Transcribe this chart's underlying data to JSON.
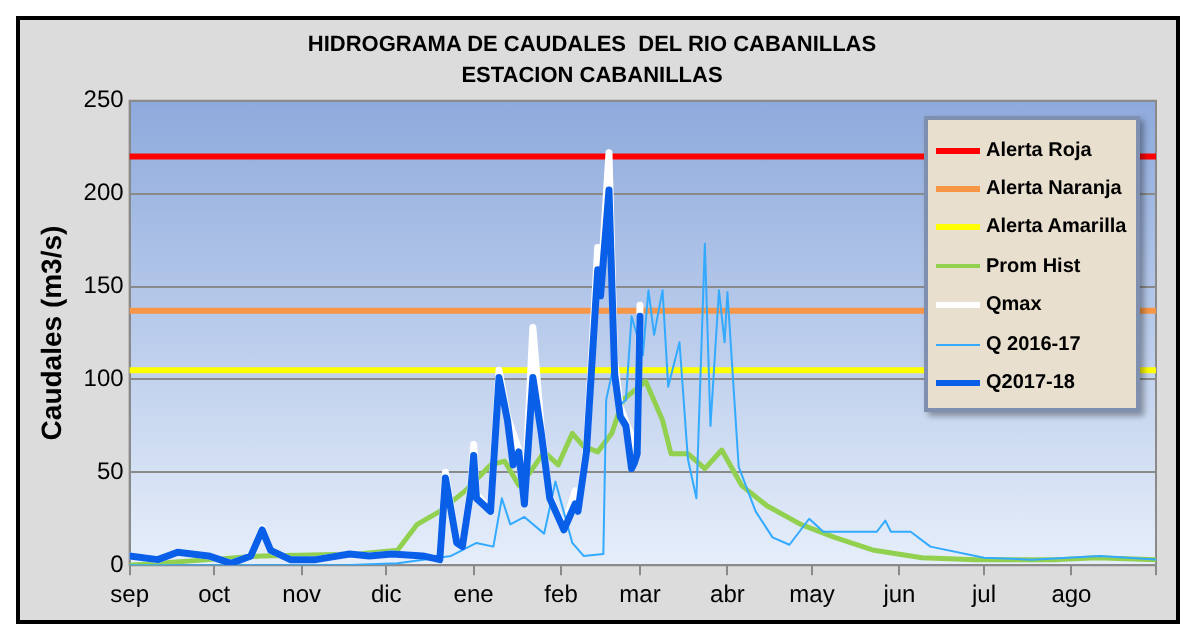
{
  "chart_data": {
    "type": "line",
    "title": "HIDROGRAMA DE CAUDALES  DEL RIO CABANILLAS",
    "subtitle": "ESTACION CABANILLAS",
    "ylabel": "Caudales (m3/s)",
    "xlim": [
      "2017-09-01",
      "2018-08-31"
    ],
    "xticks": [
      {
        "value": "2017-09-01",
        "label": "sep"
      },
      {
        "value": "2017-10-01",
        "label": "oct"
      },
      {
        "value": "2017-11-01",
        "label": "nov"
      },
      {
        "value": "2017-12-01",
        "label": "dic"
      },
      {
        "value": "2018-01-01",
        "label": "ene"
      },
      {
        "value": "2018-02-01",
        "label": "feb"
      },
      {
        "value": "2018-03-01",
        "label": "mar"
      },
      {
        "value": "2018-04-01",
        "label": "abr"
      },
      {
        "value": "2018-05-01",
        "label": "may"
      },
      {
        "value": "2018-06-01",
        "label": "jun"
      },
      {
        "value": "2018-07-01",
        "label": "jul"
      },
      {
        "value": "2018-08-01",
        "label": "ago"
      },
      {
        "value": "2018-08-31",
        "label": null
      }
    ],
    "ylim": [
      0,
      250
    ],
    "yticks": [
      0,
      50,
      100,
      150,
      200,
      250
    ],
    "grid": "y",
    "legend": "top right",
    "marker": "none",
    "line_style": "solid",
    "series": [
      {
        "name": "Alerta Roja",
        "color": "#ff0000",
        "x": [
          "2017-09-01",
          "2018-08-31"
        ],
        "values": [
          220,
          220
        ]
      },
      {
        "name": "Alerta Naranja",
        "color": "#f79646",
        "x": [
          "2017-09-01",
          "2018-08-31"
        ],
        "values": [
          137,
          137
        ]
      },
      {
        "name": "Alerta Amarilla",
        "color": "#ffff00",
        "x": [
          "2017-09-01",
          "2018-08-31"
        ],
        "values": [
          105,
          105
        ]
      },
      {
        "name": "Prom Hist",
        "color": "#92d050",
        "x": [
          "2017-09-01",
          "2017-09-29",
          "2017-10-18",
          "2017-11-21",
          "2017-12-05",
          "2017-12-12",
          "2017-12-20",
          "2017-12-29",
          "2018-01-07",
          "2018-01-12",
          "2018-01-17",
          "2018-01-21",
          "2018-01-26",
          "2018-01-31",
          "2018-02-05",
          "2018-02-09",
          "2018-02-14",
          "2018-02-19",
          "2018-02-23",
          "2018-03-03",
          "2018-03-09",
          "2018-03-12",
          "2018-03-18",
          "2018-03-24",
          "2018-03-30",
          "2018-04-06",
          "2018-04-15",
          "2018-04-27",
          "2018-05-09",
          "2018-05-23",
          "2018-06-09",
          "2018-06-28",
          "2018-07-27",
          "2018-08-10",
          "2018-08-31"
        ],
        "values": [
          0,
          3,
          5,
          6,
          8,
          22,
          29,
          40,
          54,
          56,
          43,
          50,
          61,
          54,
          71,
          64,
          61,
          71,
          89,
          99,
          78,
          60,
          60,
          52,
          62,
          43,
          32,
          22,
          15,
          8,
          4,
          3,
          3,
          4,
          3
        ]
      },
      {
        "name": "Qmax",
        "color": "#ffffff",
        "x": [
          "2017-09-01",
          "2017-09-11",
          "2017-09-18",
          "2017-09-29",
          "2017-10-07",
          "2017-10-14",
          "2017-10-18",
          "2017-10-21",
          "2017-10-28",
          "2017-11-06",
          "2017-11-18",
          "2017-11-25",
          "2017-12-03",
          "2017-12-14",
          "2017-12-20",
          "2017-12-22",
          "2017-12-26",
          "2017-12-28",
          "2017-12-31",
          "2018-01-01",
          "2018-01-02",
          "2018-01-07",
          "2018-01-10",
          "2018-01-13",
          "2018-01-15",
          "2018-01-17",
          "2018-01-19",
          "2018-01-22",
          "2018-01-25",
          "2018-01-28",
          "2018-02-02",
          "2018-02-06",
          "2018-02-07",
          "2018-02-10",
          "2018-02-14",
          "2018-02-15",
          "2018-02-18",
          "2018-02-20",
          "2018-02-22",
          "2018-02-24",
          "2018-02-26",
          "2018-02-27",
          "2018-02-28",
          "2018-03-01"
        ],
        "values": [
          5,
          3,
          7,
          5,
          1,
          5,
          20,
          8,
          3,
          3,
          6,
          5,
          6,
          5,
          3,
          50,
          12,
          10,
          42,
          65,
          38,
          30,
          105,
          80,
          null,
          62,
          34,
          128,
          73,
          37,
          20,
          40,
          30,
          63,
          171,
          150,
          222,
          110,
          85,
          77,
          null,
          null,
          62,
          140
        ]
      },
      {
        "name": "Q 2016-17",
        "color": "#33aaff",
        "x": [
          "2017-09-01",
          "2017-11-16",
          "2017-12-05",
          "2017-12-24",
          "2018-01-02",
          "2018-01-08",
          "2018-01-11",
          "2018-01-14",
          "2018-01-19",
          "2018-01-26",
          "2018-01-30",
          "2018-02-05",
          "2018-02-09",
          "2018-02-16",
          "2018-02-17",
          "2018-02-19",
          "2018-02-21",
          "2018-02-24",
          "2018-02-26",
          "2018-03-02",
          "2018-03-04",
          "2018-03-06",
          "2018-03-09",
          "2018-03-11",
          "2018-03-15",
          "2018-03-18",
          "2018-03-21",
          "2018-03-24",
          "2018-03-26",
          "2018-03-29",
          "2018-03-31",
          "2018-04-01",
          "2018-04-05",
          "2018-04-11",
          "2018-04-17",
          "2018-04-23",
          "2018-04-30",
          "2018-05-05",
          "2018-05-24",
          "2018-05-27",
          "2018-05-29",
          "2018-06-05",
          "2018-06-12",
          "2018-07-01",
          "2018-07-18",
          "2018-08-11",
          "2018-08-31"
        ],
        "values": [
          0,
          0,
          1,
          5,
          12,
          10,
          36,
          22,
          26,
          17,
          45,
          12,
          5,
          6,
          89,
          103,
          85,
          89,
          134,
          113,
          148,
          124,
          148,
          96,
          120,
          57,
          36,
          173,
          75,
          148,
          120,
          147,
          53,
          29,
          15,
          11,
          25,
          18,
          18,
          24,
          18,
          18,
          10,
          4,
          3,
          5,
          3
        ]
      },
      {
        "name": "Q2017-18",
        "color": "#0a5fe8",
        "x": [
          "2017-09-01",
          "2017-09-11",
          "2017-09-18",
          "2017-09-29",
          "2017-10-07",
          "2017-10-14",
          "2017-10-18",
          "2017-10-21",
          "2017-10-28",
          "2017-11-06",
          "2017-11-18",
          "2017-11-25",
          "2017-12-03",
          "2017-12-14",
          "2017-12-20",
          "2017-12-22",
          "2017-12-26",
          "2017-12-28",
          "2017-12-31",
          "2018-01-01",
          "2018-01-02",
          "2018-01-07",
          "2018-01-10",
          "2018-01-13",
          "2018-01-15",
          "2018-01-17",
          "2018-01-19",
          "2018-01-22",
          "2018-01-25",
          "2018-01-28",
          "2018-02-02",
          "2018-02-06",
          "2018-02-07",
          "2018-02-10",
          "2018-02-14",
          "2018-02-15",
          "2018-02-18",
          "2018-02-20",
          "2018-02-22",
          "2018-02-24",
          "2018-02-26",
          "2018-02-27",
          "2018-02-28",
          "2018-03-01"
        ],
        "values": [
          5,
          3,
          7,
          5,
          1,
          5,
          19,
          8,
          3,
          3,
          6,
          5,
          6,
          5,
          3,
          47,
          12,
          10,
          40,
          59,
          36,
          29,
          101,
          78,
          54,
          61,
          33,
          101,
          71,
          36,
          19,
          33,
          29,
          61,
          159,
          145,
          202,
          103,
          80,
          75,
          52,
          55,
          60,
          134
        ]
      }
    ]
  }
}
